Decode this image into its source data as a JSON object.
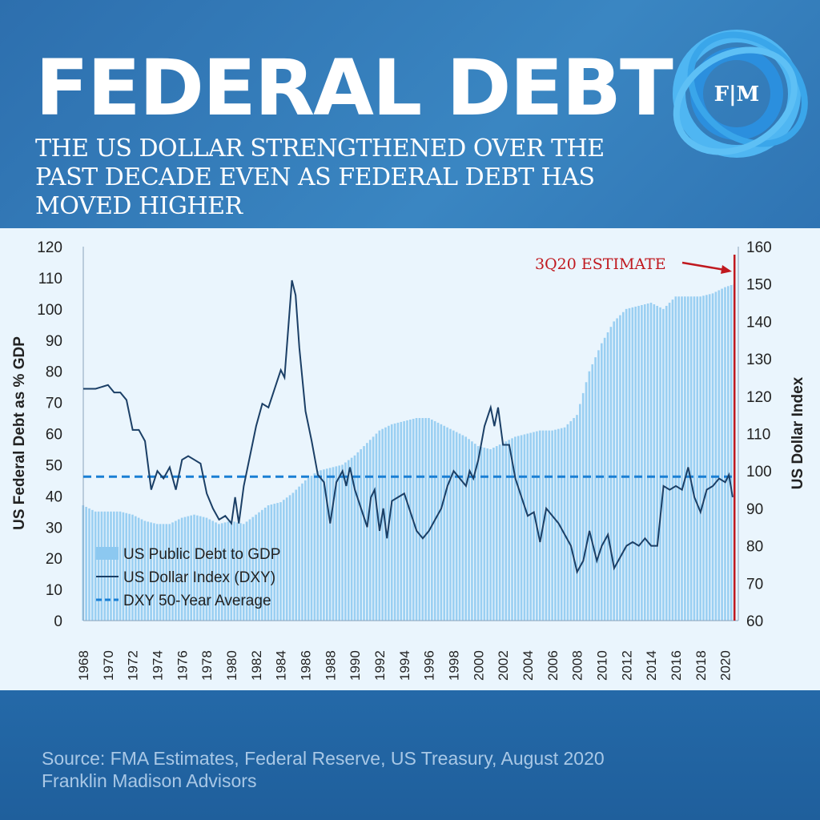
{
  "header": {
    "title": "FEDERAL DEBT",
    "subtitle": "The US Dollar strengthened over the past decade even as federal debt has moved higher",
    "logo_text": "F|M"
  },
  "footer": {
    "source": "Source: FMA Estimates, Federal Reserve, US Treasury, August 2020",
    "company": "Franklin Madison Advisors"
  },
  "colors": {
    "bars": "#8cc8f0",
    "line": "#1b3f66",
    "avg": "#1a7fd4",
    "estimate": "#c0191f"
  },
  "chart_data": {
    "type": "bar+line",
    "ylabel": "US Federal Debt as % GDP",
    "y2label": "US Dollar Index",
    "ylim": [
      0,
      120
    ],
    "y2lim": [
      60,
      160
    ],
    "yticks": [
      "0",
      "10",
      "20",
      "30",
      "40",
      "50",
      "60",
      "70",
      "80",
      "90",
      "100",
      "110",
      "120"
    ],
    "y2ticks": [
      "60",
      "70",
      "80",
      "90",
      "100",
      "110",
      "120",
      "130",
      "140",
      "150",
      "160"
    ],
    "xticks": [
      "1968",
      "1970",
      "1972",
      "1974",
      "1976",
      "1978",
      "1980",
      "1982",
      "1984",
      "1986",
      "1988",
      "1990",
      "1992",
      "1994",
      "1996",
      "1998",
      "2000",
      "2002",
      "2004",
      "2006",
      "2008",
      "2010",
      "2012",
      "2014",
      "2016",
      "2018",
      "2020"
    ],
    "annotation": "3Q20 ESTIMATE",
    "legend": {
      "position": "bottom-left",
      "entries": [
        "US Public Debt to GDP",
        "US Dollar Index (DXY)",
        "DXY 50-Year Average"
      ]
    },
    "debt_to_gdp": {
      "x": [
        1968,
        1969,
        1970,
        1971,
        1972,
        1973,
        1974,
        1975,
        1976,
        1977,
        1978,
        1979,
        1980,
        1981,
        1982,
        1983,
        1984,
        1985,
        1986,
        1987,
        1988,
        1989,
        1990,
        1991,
        1992,
        1993,
        1994,
        1995,
        1996,
        1997,
        1998,
        1999,
        2000,
        2001,
        2002,
        2003,
        2004,
        2005,
        2006,
        2007,
        2008,
        2009,
        2010,
        2011,
        2012,
        2013,
        2014,
        2015,
        2016,
        2017,
        2018,
        2019,
        2020,
        2020.75
      ],
      "values": [
        37,
        35,
        35,
        35,
        34,
        32,
        31,
        31,
        33,
        34,
        33,
        31,
        32,
        31,
        34,
        37,
        38,
        41,
        45,
        48,
        49,
        50,
        53,
        57,
        61,
        63,
        64,
        65,
        65,
        63,
        61,
        59,
        56,
        55,
        57,
        59,
        60,
        61,
        61,
        62,
        66,
        80,
        89,
        96,
        100,
        101,
        102,
        100,
        104,
        104,
        104,
        105,
        107,
        108
      ]
    },
    "dxy": {
      "x": [
        1968,
        1969,
        1970,
        1970.5,
        1971,
        1971.5,
        1972,
        1972.5,
        1973,
        1973.5,
        1974,
        1974.5,
        1975,
        1975.5,
        1976,
        1976.5,
        1977,
        1977.5,
        1978,
        1978.5,
        1979,
        1979.5,
        1980,
        1980.3,
        1980.6,
        1981,
        1981.5,
        1982,
        1982.5,
        1983,
        1983.5,
        1984,
        1984.3,
        1984.6,
        1984.9,
        1985.2,
        1985.5,
        1986,
        1986.5,
        1987,
        1987.5,
        1988,
        1988.5,
        1989,
        1989.3,
        1989.6,
        1990,
        1990.5,
        1991,
        1991.3,
        1991.6,
        1992,
        1992.3,
        1992.6,
        1993,
        1993.5,
        1994,
        1994.5,
        1995,
        1995.5,
        1996,
        1996.5,
        1997,
        1997.5,
        1998,
        1998.5,
        1999,
        1999.3,
        1999.6,
        2000,
        2000.5,
        2001,
        2001.3,
        2001.6,
        2002,
        2002.5,
        2003,
        2003.5,
        2004,
        2004.5,
        2005,
        2005.5,
        2006,
        2006.5,
        2007,
        2007.5,
        2008,
        2008.5,
        2009,
        2009.3,
        2009.6,
        2010,
        2010.5,
        2011,
        2011.5,
        2012,
        2012.5,
        2013,
        2013.5,
        2014,
        2014.5,
        2015,
        2015.5,
        2016,
        2016.5,
        2017,
        2017.5,
        2018,
        2018.5,
        2019,
        2019.5,
        2020,
        2020.3,
        2020.6
      ],
      "values": [
        122,
        122,
        123,
        121,
        121,
        119,
        111,
        111,
        108,
        95,
        100,
        98,
        101,
        95,
        103,
        104,
        103,
        102,
        94,
        90,
        87,
        88,
        86,
        93,
        86,
        96,
        104,
        112,
        118,
        117,
        122,
        127,
        125,
        138,
        151,
        147,
        133,
        116,
        108,
        99,
        97,
        86,
        97,
        100,
        96,
        101,
        95,
        90,
        85,
        93,
        95,
        84,
        90,
        82,
        92,
        93,
        94,
        89,
        84,
        82,
        84,
        87,
        90,
        96,
        100,
        98,
        96,
        100,
        98,
        103,
        112,
        117,
        112,
        117,
        107,
        107,
        98,
        93,
        88,
        89,
        81,
        90,
        88,
        86,
        83,
        80,
        73,
        76,
        84,
        80,
        76,
        80,
        83,
        74,
        77,
        80,
        81,
        80,
        82,
        80,
        80,
        96,
        95,
        96,
        95,
        101,
        93,
        89,
        95,
        96,
        98,
        97,
        99,
        93
      ]
    },
    "dxy_average": 98.5,
    "estimate_x": 2020.75
  }
}
